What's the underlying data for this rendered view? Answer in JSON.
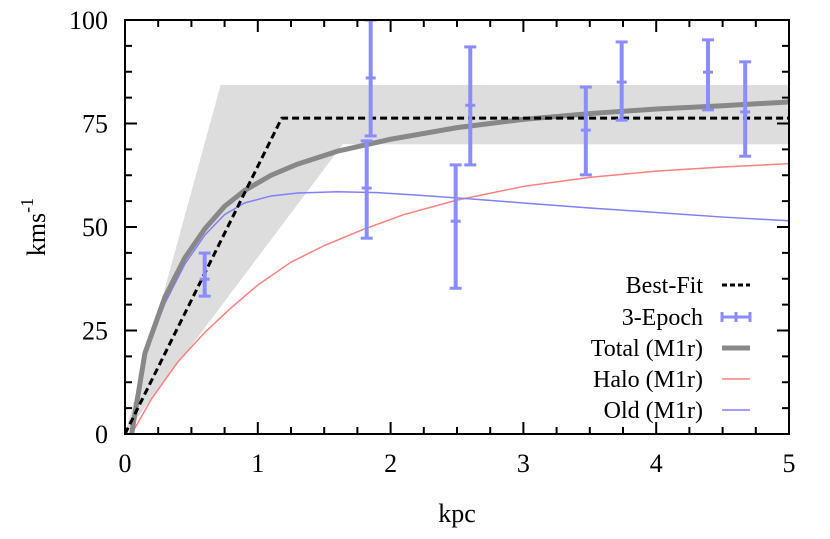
{
  "chart_data": {
    "type": "line",
    "title": "",
    "xlabel": "kpc",
    "ylabel": "kms",
    "ylabel_superscript": "-1",
    "xlim": [
      0,
      5
    ],
    "ylim": [
      0,
      100
    ],
    "grid": false,
    "legend_position": "lower right",
    "x_ticks": [
      0,
      1,
      2,
      3,
      4,
      5
    ],
    "x_tick_labels": [
      "0",
      "1",
      "2",
      "3",
      "4",
      "5"
    ],
    "x_minor_step": 0.25,
    "y_ticks": [
      0,
      25,
      50,
      75,
      100
    ],
    "y_tick_labels": [
      "0",
      "25",
      "50",
      "75",
      "100"
    ],
    "y_minor_step": 6.25,
    "shaded_region": {
      "name": "Best-fit uncertainty band",
      "color": "#dddddd",
      "polygon": [
        [
          0.0,
          0.0
        ],
        [
          0.72,
          84.3
        ],
        [
          5.0,
          84.3
        ],
        [
          5.0,
          70.0
        ],
        [
          1.64,
          70.0
        ],
        [
          0.0,
          0.0
        ]
      ]
    },
    "series": [
      {
        "name": "Best-Fit",
        "style": "dashed",
        "color": "#000000",
        "width": 3,
        "x": [
          0.0,
          1.18,
          5.0
        ],
        "y": [
          0.0,
          76.3,
          76.3
        ]
      },
      {
        "name": "3-Epoch",
        "style": "errorbar",
        "color": "#8a8cff",
        "points": [
          {
            "x": 0.6,
            "y": 37.4,
            "ylow": 33.3,
            "yhigh": 43.7
          },
          {
            "x": 1.82,
            "y": 59.4,
            "ylow": 47.3,
            "yhigh": 70.8
          },
          {
            "x": 1.85,
            "y": 86.0,
            "ylow": 72.0,
            "yhigh": 100.0
          },
          {
            "x": 2.49,
            "y": 51.4,
            "ylow": 35.2,
            "yhigh": 65.0
          },
          {
            "x": 2.6,
            "y": 79.4,
            "ylow": 65.0,
            "yhigh": 93.5
          },
          {
            "x": 3.47,
            "y": 73.4,
            "ylow": 62.6,
            "yhigh": 83.8
          },
          {
            "x": 3.74,
            "y": 85.0,
            "ylow": 75.8,
            "yhigh": 94.7
          },
          {
            "x": 4.39,
            "y": 87.4,
            "ylow": 78.3,
            "yhigh": 95.2
          },
          {
            "x": 4.67,
            "y": 77.8,
            "ylow": 67.1,
            "yhigh": 89.9
          }
        ]
      },
      {
        "name": "Total (M1r)",
        "style": "solid",
        "color": "#888888",
        "width": 5,
        "x": [
          0.05,
          0.15,
          0.3,
          0.45,
          0.6,
          0.75,
          0.9,
          1.1,
          1.3,
          1.6,
          2.0,
          2.5,
          3.0,
          3.5,
          4.0,
          4.5,
          5.0
        ],
        "y": [
          0.0,
          19.5,
          33.0,
          42.5,
          49.5,
          55.0,
          58.8,
          62.5,
          65.2,
          68.3,
          71.2,
          74.0,
          76.0,
          77.4,
          78.5,
          79.3,
          80.2
        ]
      },
      {
        "name": "Halo (M1r)",
        "style": "solid",
        "color": "#ff7f7f",
        "width": 1.5,
        "x": [
          0.05,
          0.2,
          0.4,
          0.6,
          0.8,
          1.0,
          1.25,
          1.5,
          1.8,
          2.1,
          2.5,
          3.0,
          3.5,
          4.0,
          4.5,
          5.0
        ],
        "y": [
          0.0,
          8.5,
          17.5,
          24.5,
          30.5,
          36.0,
          41.5,
          45.5,
          49.5,
          53.0,
          56.5,
          59.8,
          62.0,
          63.5,
          64.5,
          65.3
        ]
      },
      {
        "name": "Old (M1r)",
        "style": "solid",
        "color": "#7f7fff",
        "width": 1.5,
        "x": [
          0.05,
          0.15,
          0.3,
          0.45,
          0.6,
          0.75,
          0.9,
          1.1,
          1.3,
          1.6,
          1.9,
          2.2,
          2.6,
          3.0,
          3.5,
          4.0,
          4.5,
          5.0
        ],
        "y": [
          0.0,
          19.0,
          31.5,
          41.0,
          48.0,
          53.0,
          55.8,
          57.5,
          58.2,
          58.5,
          58.3,
          57.7,
          56.8,
          55.8,
          54.6,
          53.5,
          52.4,
          51.5
        ]
      }
    ],
    "legend": [
      {
        "label": "Best-Fit",
        "style": "dashed",
        "color": "#000000"
      },
      {
        "label": "3-Epoch",
        "style": "errorbar",
        "color": "#8a8cff"
      },
      {
        "label": "Total (M1r)",
        "style": "thick",
        "color": "#888888"
      },
      {
        "label": "Halo (M1r)",
        "style": "thin",
        "color": "#ff7f7f"
      },
      {
        "label": "Old (M1r)",
        "style": "thin",
        "color": "#7f7fff"
      }
    ]
  },
  "axes": {
    "xlabel": "kpc",
    "ylabel_main": "kms",
    "ylabel_sup": "-1"
  },
  "legend": {
    "items": [
      {
        "label": "Best-Fit"
      },
      {
        "label": "3-Epoch"
      },
      {
        "label": "Total (M1r)"
      },
      {
        "label": "Halo (M1r)"
      },
      {
        "label": "Old (M1r)"
      }
    ]
  }
}
